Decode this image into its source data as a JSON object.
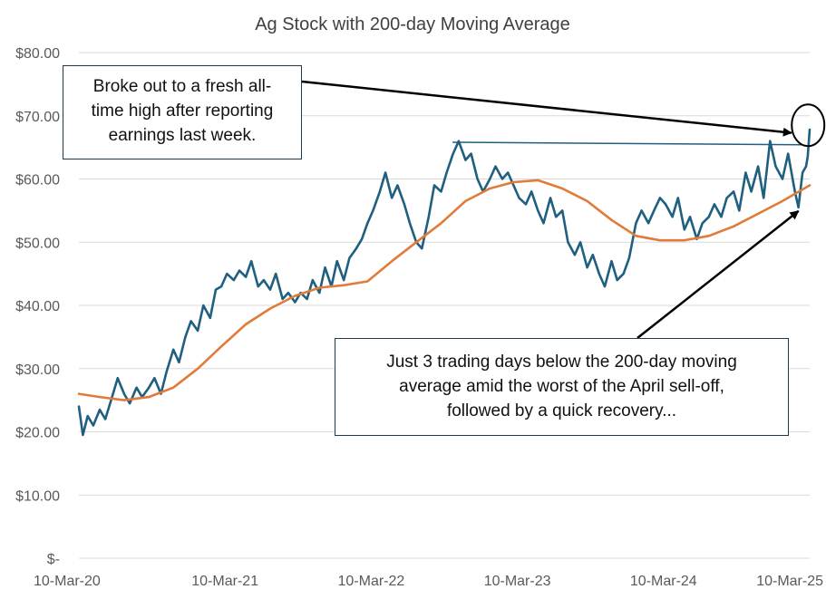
{
  "chart_data": {
    "type": "line",
    "title": "Ag Stock with 200-day Moving Average",
    "xlabel": "",
    "ylabel": "",
    "x_tick_labels": [
      "10-Mar-20",
      "10-Mar-21",
      "10-Mar-22",
      "10-Mar-23",
      "10-Mar-24",
      "10-Mar-25"
    ],
    "y_tick_labels": [
      "$-",
      "$10.00",
      "$20.00",
      "$30.00",
      "$40.00",
      "$50.00",
      "$60.00",
      "$70.00",
      "$80.00"
    ],
    "ylim": [
      0,
      80
    ],
    "xlim": [
      "2020-03-10",
      "2025-03-10"
    ],
    "grid": "horizontal",
    "legend": "none",
    "colors": {
      "price": "#1f5f7f",
      "ma200": "#e07b39",
      "resistance": "#1f5f7f",
      "arrow": "#000000",
      "box_border": "#1f3a4d",
      "grid": "#d9d9d9"
    },
    "series": [
      {
        "key": "price",
        "points": [
          [
            "2020-03-10",
            24
          ],
          [
            "2020-03-20",
            19.5
          ],
          [
            "2020-04-01",
            22.5
          ],
          [
            "2020-04-15",
            21
          ],
          [
            "2020-05-01",
            23.5
          ],
          [
            "2020-05-15",
            22
          ],
          [
            "2020-06-01",
            25.5
          ],
          [
            "2020-06-15",
            28.5
          ],
          [
            "2020-07-01",
            26
          ],
          [
            "2020-07-15",
            24.5
          ],
          [
            "2020-08-01",
            27
          ],
          [
            "2020-08-15",
            25.5
          ],
          [
            "2020-09-01",
            27
          ],
          [
            "2020-09-15",
            28.5
          ],
          [
            "2020-10-01",
            26
          ],
          [
            "2020-10-15",
            29.5
          ],
          [
            "2020-11-01",
            33
          ],
          [
            "2020-11-15",
            31
          ],
          [
            "2020-12-01",
            35
          ],
          [
            "2020-12-15",
            37.5
          ],
          [
            "2021-01-01",
            36
          ],
          [
            "2021-01-15",
            40
          ],
          [
            "2021-02-01",
            38
          ],
          [
            "2021-02-15",
            42.5
          ],
          [
            "2021-03-01",
            43
          ],
          [
            "2021-03-15",
            45
          ],
          [
            "2021-04-01",
            44
          ],
          [
            "2021-04-15",
            45.5
          ],
          [
            "2021-05-01",
            44.5
          ],
          [
            "2021-05-15",
            47
          ],
          [
            "2021-06-01",
            43
          ],
          [
            "2021-06-15",
            44
          ],
          [
            "2021-07-01",
            42.5
          ],
          [
            "2021-07-15",
            45
          ],
          [
            "2021-08-01",
            41
          ],
          [
            "2021-08-15",
            42
          ],
          [
            "2021-09-01",
            40.5
          ],
          [
            "2021-09-15",
            42
          ],
          [
            "2021-10-01",
            41
          ],
          [
            "2021-10-15",
            44
          ],
          [
            "2021-11-01",
            42
          ],
          [
            "2021-11-15",
            46
          ],
          [
            "2021-12-01",
            43
          ],
          [
            "2021-12-15",
            47
          ],
          [
            "2022-01-01",
            44
          ],
          [
            "2022-01-15",
            47.5
          ],
          [
            "2022-02-01",
            49
          ],
          [
            "2022-02-15",
            50.5
          ],
          [
            "2022-03-01",
            53
          ],
          [
            "2022-03-15",
            55
          ],
          [
            "2022-04-01",
            58
          ],
          [
            "2022-04-15",
            61
          ],
          [
            "2022-05-01",
            57
          ],
          [
            "2022-05-15",
            59
          ],
          [
            "2022-06-01",
            56
          ],
          [
            "2022-06-15",
            53
          ],
          [
            "2022-07-01",
            50
          ],
          [
            "2022-07-15",
            49
          ],
          [
            "2022-08-01",
            54
          ],
          [
            "2022-08-15",
            59
          ],
          [
            "2022-09-01",
            58
          ],
          [
            "2022-09-15",
            61
          ],
          [
            "2022-10-01",
            64
          ],
          [
            "2022-10-15",
            66
          ],
          [
            "2022-11-01",
            63
          ],
          [
            "2022-11-15",
            64
          ],
          [
            "2022-12-01",
            60
          ],
          [
            "2022-12-15",
            58
          ],
          [
            "2023-01-01",
            60
          ],
          [
            "2023-01-15",
            62
          ],
          [
            "2023-02-01",
            60
          ],
          [
            "2023-02-15",
            61
          ],
          [
            "2023-03-01",
            59
          ],
          [
            "2023-03-15",
            57
          ],
          [
            "2023-04-01",
            56
          ],
          [
            "2023-04-15",
            58
          ],
          [
            "2023-05-01",
            55
          ],
          [
            "2023-05-15",
            53
          ],
          [
            "2023-06-01",
            57
          ],
          [
            "2023-06-15",
            54
          ],
          [
            "2023-07-01",
            55
          ],
          [
            "2023-07-15",
            50
          ],
          [
            "2023-08-01",
            48
          ],
          [
            "2023-08-15",
            50
          ],
          [
            "2023-09-01",
            46
          ],
          [
            "2023-09-15",
            48
          ],
          [
            "2023-10-01",
            45
          ],
          [
            "2023-10-15",
            43
          ],
          [
            "2023-11-01",
            47
          ],
          [
            "2023-11-15",
            44
          ],
          [
            "2023-12-01",
            45
          ],
          [
            "2023-12-15",
            47.5
          ],
          [
            "2024-01-01",
            53
          ],
          [
            "2024-01-15",
            55
          ],
          [
            "2024-02-01",
            53
          ],
          [
            "2024-02-15",
            55
          ],
          [
            "2024-03-01",
            57
          ],
          [
            "2024-03-15",
            56
          ],
          [
            "2024-04-01",
            54
          ],
          [
            "2024-04-15",
            57
          ],
          [
            "2024-05-01",
            52
          ],
          [
            "2024-05-15",
            54
          ],
          [
            "2024-06-01",
            50.5
          ],
          [
            "2024-06-15",
            53
          ],
          [
            "2024-07-01",
            54
          ],
          [
            "2024-07-15",
            56
          ],
          [
            "2024-08-01",
            54
          ],
          [
            "2024-08-15",
            57
          ],
          [
            "2024-09-01",
            58
          ],
          [
            "2024-09-15",
            55
          ],
          [
            "2024-10-01",
            61
          ],
          [
            "2024-10-15",
            58
          ],
          [
            "2024-11-01",
            62
          ],
          [
            "2024-11-15",
            57
          ],
          [
            "2024-12-01",
            66
          ],
          [
            "2024-12-15",
            62
          ],
          [
            "2025-01-01",
            60
          ],
          [
            "2025-01-15",
            64
          ],
          [
            "2025-02-01",
            58
          ],
          [
            "2025-02-10",
            55.5
          ],
          [
            "2025-02-20",
            61
          ],
          [
            "2025-03-01",
            62
          ],
          [
            "2025-03-05",
            63.5
          ],
          [
            "2025-03-08",
            66
          ],
          [
            "2025-03-10",
            67.8
          ]
        ]
      },
      {
        "key": "ma200",
        "points": [
          [
            "2020-03-10",
            26
          ],
          [
            "2020-05-01",
            25.5
          ],
          [
            "2020-07-01",
            25
          ],
          [
            "2020-09-01",
            25.5
          ],
          [
            "2020-11-01",
            27
          ],
          [
            "2021-01-01",
            30
          ],
          [
            "2021-03-01",
            33.5
          ],
          [
            "2021-05-01",
            37
          ],
          [
            "2021-07-01",
            39.5
          ],
          [
            "2021-09-01",
            41.5
          ],
          [
            "2021-11-01",
            42.8
          ],
          [
            "2022-01-01",
            43.2
          ],
          [
            "2022-03-01",
            43.8
          ],
          [
            "2022-05-01",
            47
          ],
          [
            "2022-07-01",
            50
          ],
          [
            "2022-09-01",
            53
          ],
          [
            "2022-11-01",
            56.5
          ],
          [
            "2023-01-01",
            58.5
          ],
          [
            "2023-03-01",
            59.5
          ],
          [
            "2023-05-01",
            59.8
          ],
          [
            "2023-07-01",
            58.5
          ],
          [
            "2023-09-01",
            56.5
          ],
          [
            "2023-11-01",
            53.5
          ],
          [
            "2024-01-01",
            51
          ],
          [
            "2024-03-01",
            50.3
          ],
          [
            "2024-05-01",
            50.3
          ],
          [
            "2024-07-01",
            51
          ],
          [
            "2024-09-01",
            52.5
          ],
          [
            "2024-11-01",
            54.5
          ],
          [
            "2025-01-01",
            56.5
          ],
          [
            "2025-03-10",
            59
          ]
        ]
      },
      {
        "key": "resistance",
        "points": [
          [
            "2022-10-01",
            65.8
          ],
          [
            "2025-02-20",
            65.4
          ]
        ]
      }
    ],
    "annotations": [
      {
        "text_lines": [
          "Broke out to a fresh all-",
          "time high after reporting",
          "earnings last week."
        ],
        "arrow_to": [
          "2025-03-05",
          67
        ]
      },
      {
        "text_lines": [
          "Just 3 trading days below the 200-day moving",
          "average amid the worst of the April sell-off,",
          "followed by a quick recovery..."
        ],
        "arrow_to": [
          "2025-02-10",
          55.5
        ]
      }
    ],
    "highlight_circle": {
      "center": [
        "2025-03-06",
        67.5
      ]
    }
  }
}
